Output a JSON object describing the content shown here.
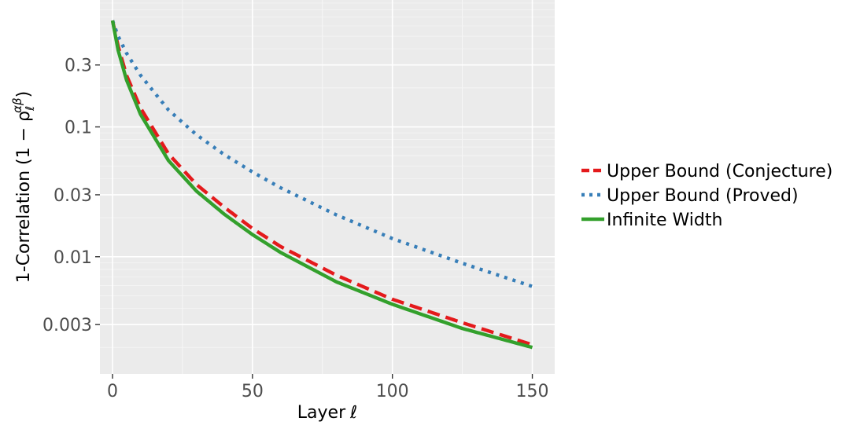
{
  "chart_data": {
    "type": "line",
    "title": "",
    "xlabel": "Layer",
    "xlabel_symbol": "ℓ",
    "ylabel": "1-Correlation (1 − ρ",
    "ylabel_sub": "ℓ",
    "ylabel_sup": "αβ",
    "ylabel_close": ")",
    "x_scale": "linear",
    "y_scale": "log10",
    "xlim": [
      -4.5,
      158
    ],
    "ylim": [
      0.00125,
      0.95
    ],
    "x_ticks": [
      0,
      50,
      100,
      150
    ],
    "x_tick_labels": [
      "0",
      "50",
      "100",
      "150"
    ],
    "y_ticks": [
      0.003,
      0.01,
      0.03,
      0.1,
      0.3
    ],
    "y_tick_labels": [
      "0.003",
      "0.01",
      "0.03",
      "0.1",
      "0.3"
    ],
    "grid": true,
    "legend_position": "right",
    "series": [
      {
        "name": "Upper Bound (Conjecture)",
        "color": "#e41a1c",
        "style": "dashed",
        "x": [
          0,
          2,
          5,
          10,
          20,
          30,
          40,
          50,
          60,
          80,
          100,
          125,
          150
        ],
        "y": [
          0.66,
          0.42,
          0.25,
          0.14,
          0.062,
          0.036,
          0.024,
          0.0165,
          0.012,
          0.0072,
          0.0047,
          0.0031,
          0.0021
        ]
      },
      {
        "name": "Upper Bound (Proved)",
        "color": "#377eb8",
        "style": "dotted",
        "x": [
          0,
          2,
          5,
          10,
          20,
          30,
          40,
          50,
          60,
          80,
          100,
          125,
          150
        ],
        "y": [
          0.66,
          0.5,
          0.37,
          0.25,
          0.135,
          0.087,
          0.061,
          0.045,
          0.034,
          0.021,
          0.0138,
          0.0089,
          0.0059
        ]
      },
      {
        "name": "Infinite Width",
        "color": "#33a02c",
        "style": "solid",
        "x": [
          0,
          2,
          5,
          10,
          20,
          30,
          40,
          50,
          60,
          80,
          100,
          125,
          150
        ],
        "y": [
          0.66,
          0.39,
          0.23,
          0.125,
          0.055,
          0.032,
          0.0212,
          0.0148,
          0.0108,
          0.0064,
          0.0043,
          0.0028,
          0.002
        ]
      }
    ]
  }
}
